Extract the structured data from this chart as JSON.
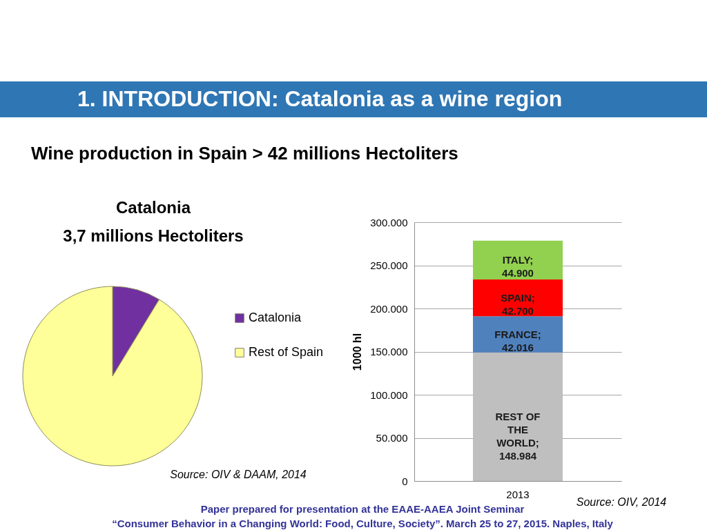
{
  "chart_data": [
    {
      "type": "other",
      "title": "1. INTRODUCTION: Catalonia as a wine region",
      "subtitle": "Wine production in Spain > 42 millions Hectoliters"
    },
    {
      "type": "pie",
      "title": "Catalonia",
      "subtitle": "3,7 millions Hectoliters",
      "categories": [
        "Catalonia",
        "Rest of Spain"
      ],
      "values": [
        8.7,
        91.3
      ],
      "colors": [
        "#7030a0",
        "#ffff99"
      ],
      "legend": "right",
      "annotations": [
        "Source: OIV & DAAM, 2014"
      ]
    },
    {
      "type": "bar",
      "stacked": true,
      "categories": [
        "2013"
      ],
      "ylabel": "1000 hl",
      "ylim": [
        0,
        300000
      ],
      "yticks": [
        0,
        {
          "value": 50000,
          "label": "50.000"
        },
        {
          "value": 100000,
          "label": "100.000"
        },
        {
          "value": 150000,
          "label": "150.000"
        },
        {
          "value": 200000,
          "label": "200.000"
        },
        {
          "value": 250000,
          "label": "250.000"
        },
        {
          "value": 300000,
          "label": "300.000"
        }
      ],
      "grid": "y",
      "series": [
        {
          "name": "REST OF THE WORLD;",
          "color": "#bfbfbf",
          "values": [
            148984
          ],
          "value_labels": [
            "148.984"
          ]
        },
        {
          "name": "FRANCE;",
          "color": "#4f81bd",
          "values": [
            42016
          ],
          "value_labels": [
            "42.016"
          ]
        },
        {
          "name": "SPAIN;",
          "color": "#ff0000",
          "values": [
            42700
          ],
          "value_labels": [
            "42.700"
          ]
        },
        {
          "name": "ITALY;",
          "color": "#92d050",
          "values": [
            44900
          ],
          "value_labels": [
            "44.900"
          ]
        }
      ],
      "annotations": [
        "Source: OIV, 2014"
      ]
    },
    {
      "type": "other",
      "annotations": [
        "Paper prepared for presentation at the EAAE-AAEA Joint Seminar",
        "“Consumer Behavior in a Changing World: Food, Culture, Society”. March 25 to 27, 2015. Naples, Italy"
      ]
    }
  ]
}
